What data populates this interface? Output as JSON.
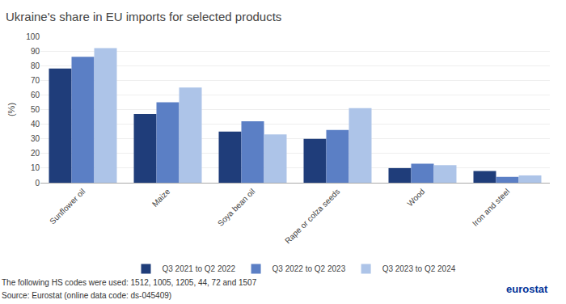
{
  "chart_data": {
    "type": "bar",
    "title": "Ukraine's share in EU imports for selected products",
    "ylabel": "(%)",
    "categories": [
      "Sunflower oil",
      "Maize",
      "Soya bean oil",
      "Rape or colza seeds",
      "Wood",
      "Iron and steel"
    ],
    "series": [
      {
        "name": "Q3 2021 to Q2 2022",
        "color": "#1f3d7a",
        "values": [
          78,
          47,
          35,
          30,
          10,
          8
        ]
      },
      {
        "name": "Q3 2022 to Q2 2023",
        "color": "#5b7fc5",
        "values": [
          86,
          55,
          42,
          36,
          13,
          4
        ]
      },
      {
        "name": "Q3 2023 to Q2 2024",
        "color": "#adc4e8",
        "values": [
          92,
          65,
          33,
          51,
          12,
          5
        ]
      }
    ],
    "ylim": [
      0,
      100
    ],
    "yticks": [
      0,
      10,
      20,
      30,
      40,
      50,
      60,
      70,
      80,
      90,
      100
    ],
    "grid": true,
    "legend": "bottom",
    "annotations": [
      "The following HS codes were used: 1512, 1005, 1205, 44, 72 and 1507",
      "Source: Eurostat (online data code: ds-045409)",
      "eurostat"
    ]
  }
}
